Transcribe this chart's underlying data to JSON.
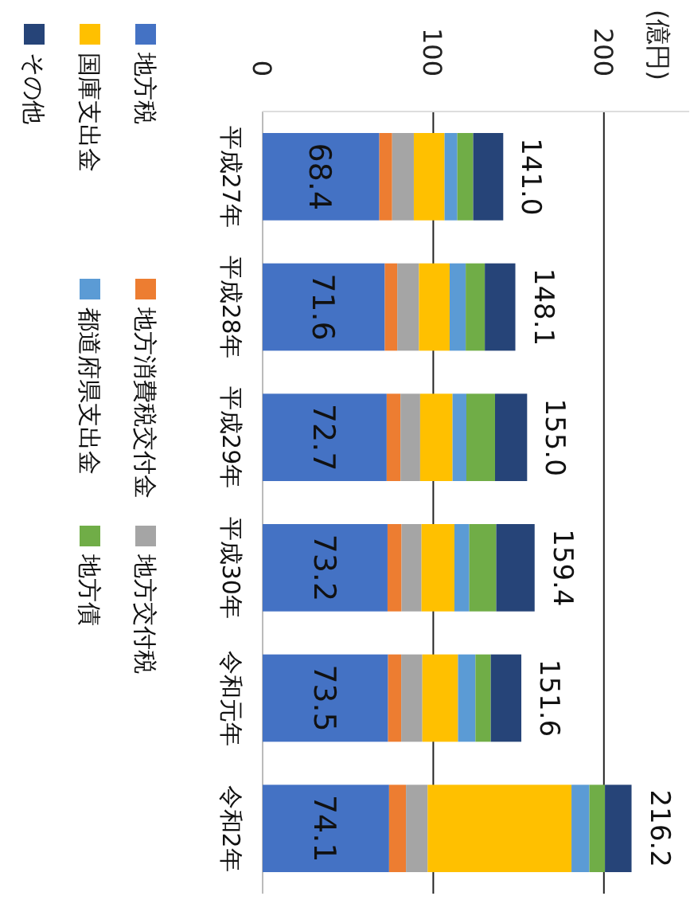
{
  "chart_data": {
    "type": "bar",
    "orientation": "horizontal",
    "stacked": true,
    "categories": [
      "平成27年",
      "平成28年",
      "平成29年",
      "平成30年",
      "令和元年",
      "令和2年"
    ],
    "series": [
      {
        "name": "地方税",
        "color": "#4472c4",
        "values": [
          68.4,
          71.6,
          72.7,
          73.2,
          73.5,
          74.1
        ],
        "value_labels": [
          "68.4",
          "71.6",
          "72.7",
          "73.2",
          "73.5",
          "74.1"
        ]
      },
      {
        "name": "地方消費税交付金",
        "color": "#ed7d31",
        "values": [
          7.5,
          7.3,
          8.1,
          8.2,
          7.7,
          9.9
        ]
      },
      {
        "name": "地方交付税",
        "color": "#a5a5a5",
        "values": [
          12.7,
          12.7,
          11.5,
          11.7,
          12.4,
          12.7
        ]
      },
      {
        "name": "国庫支出金",
        "color": "#ffc000",
        "values": [
          18.0,
          18.0,
          19.0,
          19.3,
          20.9,
          84.3
        ]
      },
      {
        "name": "都道府県支出金",
        "color": "#5b9bd5",
        "values": [
          7.5,
          9.4,
          8.1,
          8.7,
          10.2,
          10.5
        ]
      },
      {
        "name": "地方債",
        "color": "#70ad47",
        "values": [
          9.3,
          11.2,
          16.8,
          15.8,
          9.0,
          9.1
        ]
      },
      {
        "name": "その他",
        "color": "#264478",
        "values": [
          17.6,
          17.9,
          18.8,
          22.5,
          17.9,
          15.6
        ]
      }
    ],
    "totals": [
      "141.0",
      "148.1",
      "155.0",
      "159.4",
      "151.6",
      "216.2"
    ],
    "xlim": [
      0,
      250
    ],
    "xticks": [
      0,
      100,
      200
    ],
    "annotations": [
      "(億円)"
    ],
    "grid": "x",
    "legend": "left"
  }
}
